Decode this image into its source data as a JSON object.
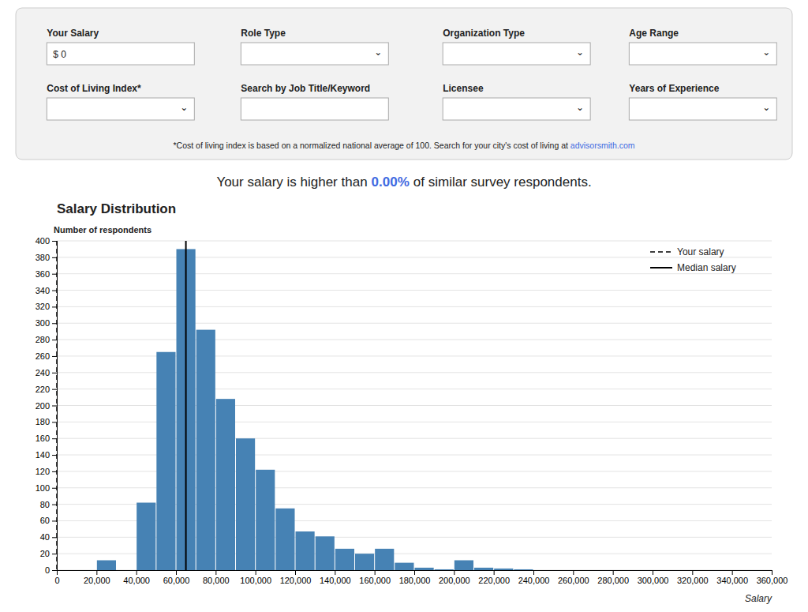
{
  "chart_data": {
    "type": "histogram",
    "title": "Salary Distribution",
    "subtitle": [
      {
        "text": "Your salary is higher than"
      },
      {
        "text": "0.00%",
        "color": "#4169E1"
      },
      {
        "text": "of similar survey respondents."
      }
    ],
    "annotations": [
      {
        "text": "Your Salary",
        "input": "$ 0"
      },
      {
        "text": "Role Type",
        "dropdown": "⌄"
      },
      {
        "text": "Organization Type",
        "dropdown": "⌄"
      },
      {
        "text": "Age Range",
        "dropdown": "⌄"
      },
      {
        "text": "Cost of Living Index*",
        "dropdown": "⌄"
      },
      {
        "text": "Search by Job Title/Keyword"
      },
      {
        "text": "Licensee",
        "dropdown": "⌄"
      },
      {
        "text": "Years of Experience",
        "dropdown": "⌄"
      }
    ],
    "note": [
      {
        "text": "*Cost of living index is based on a normalized national average of 100. Search for your city's cost of living at "
      },
      {
        "text": "advisorsmith.com",
        "color": "#4169E1"
      }
    ],
    "x_label": "Salary",
    "y_label": "Number of respondents",
    "x": [
      0,
      20000,
      30000,
      40000,
      50000,
      60000,
      70000,
      80000,
      90000,
      100000,
      110000,
      120000,
      130000,
      140000,
      150000,
      160000,
      170000,
      180000,
      190000,
      200000,
      210000,
      220000,
      230000,
      240000,
      250000,
      260000,
      270000,
      280000,
      290000,
      300000,
      310000,
      320000,
      330000,
      340000,
      350000
    ],
    "bin_width": 10000,
    "values": [
      0,
      12,
      0,
      82,
      265,
      390,
      292,
      208,
      160,
      122,
      75,
      47,
      41,
      26,
      20,
      26,
      9,
      3,
      1,
      12,
      3,
      2,
      1,
      0,
      0,
      0,
      0,
      0,
      0,
      0,
      0,
      0,
      0,
      0,
      0
    ],
    "color": "#4682B4",
    "reference_lines": [
      {
        "name": "Your salary",
        "value": 0,
        "line_style": "dashed"
      },
      {
        "name": "Median salary",
        "value": 65000,
        "line_style": "solid"
      }
    ],
    "legend": "upper right",
    "grid": true,
    "xlim": [
      0,
      360000
    ],
    "ylim": [
      0,
      400
    ],
    "xticks": [
      0,
      {
        "value": 20000,
        "label": "20,000"
      },
      {
        "value": 40000,
        "label": "40,000"
      },
      {
        "value": 60000,
        "label": "60,000"
      },
      {
        "value": 80000,
        "label": "80,000"
      },
      {
        "value": 100000,
        "label": "100,000"
      },
      {
        "value": 120000,
        "label": "120,000"
      },
      {
        "value": 140000,
        "label": "140,000"
      },
      {
        "value": 160000,
        "label": "160,000"
      },
      {
        "value": 180000,
        "label": "180,000"
      },
      {
        "value": 200000,
        "label": "200,000"
      },
      {
        "value": 220000,
        "label": "220,000"
      },
      {
        "value": 240000,
        "label": "240,000"
      },
      {
        "value": 260000,
        "label": "260,000"
      },
      {
        "value": 280000,
        "label": "280,000"
      },
      {
        "value": 300000,
        "label": "300,000"
      },
      {
        "value": 320000,
        "label": "320,000"
      },
      {
        "value": 340000,
        "label": "340,000"
      },
      {
        "value": 360000,
        "label": "360,000"
      }
    ],
    "yticks": [
      0,
      20,
      40,
      60,
      80,
      100,
      120,
      140,
      160,
      180,
      200,
      220,
      240,
      260,
      280,
      300,
      320,
      340,
      360,
      380,
      400
    ]
  }
}
